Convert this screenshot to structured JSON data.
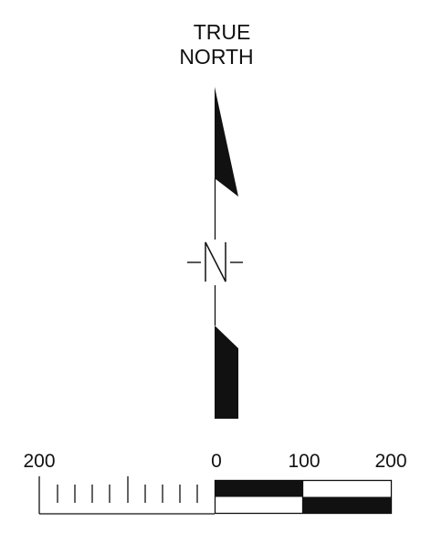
{
  "north_arrow": {
    "label_line1": "TRUE",
    "label_line2": "NORTH",
    "symbol": "N"
  },
  "scale_bar": {
    "label_left": "200",
    "label_zero": "0",
    "label_mid": "100",
    "label_right": "200"
  },
  "colors": {
    "ink": "#111111",
    "background": "#ffffff"
  }
}
